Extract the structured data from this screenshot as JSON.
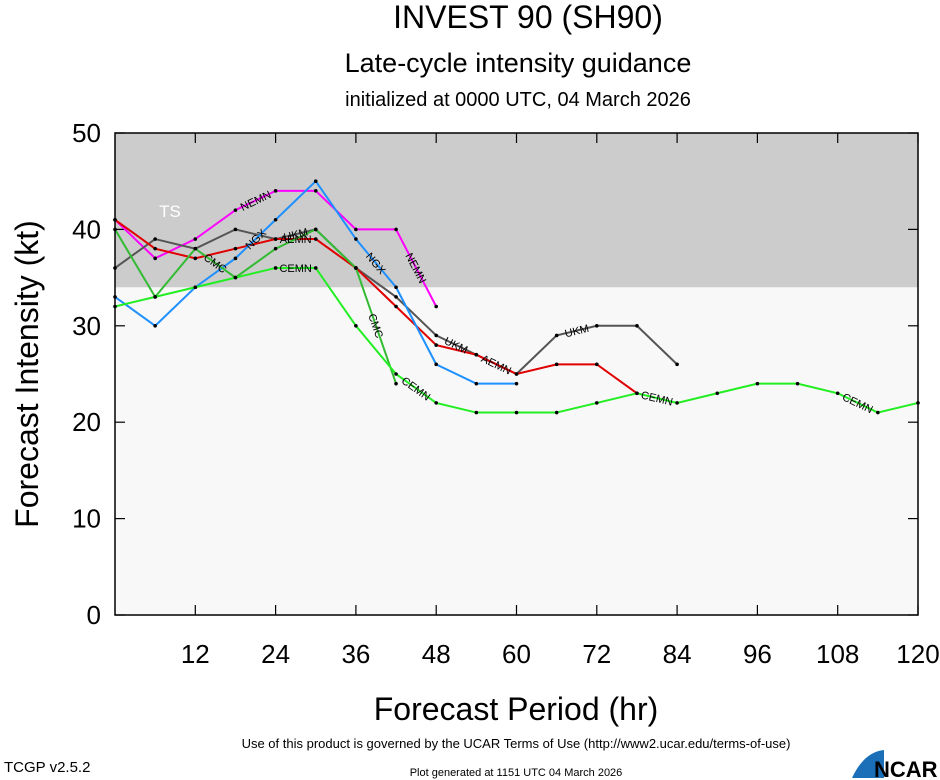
{
  "chart_data": {
    "type": "line",
    "title": "INVEST 90 (SH90)",
    "subtitle": "Late-cycle intensity guidance",
    "init_text": "initialized at 0000 UTC, 04 March 2026",
    "x_label": "Forecast Period (hr)",
    "y_label": "Forecast Intensity (kt)",
    "ts_threshold": 34,
    "ts_label": "TS",
    "x": [
      0,
      6,
      12,
      18,
      24,
      30,
      36,
      42,
      48,
      54,
      60,
      66,
      72,
      78,
      84,
      90,
      96,
      102,
      108,
      114,
      120
    ],
    "xlim": [
      0,
      120
    ],
    "xticks": [
      12,
      24,
      36,
      48,
      60,
      72,
      84,
      96,
      108,
      120
    ],
    "ylim": [
      0,
      50
    ],
    "yticks": [
      0,
      10,
      20,
      30,
      40,
      50
    ],
    "series": [
      {
        "name": "NEMN",
        "color": "#ff00ff",
        "values": [
          41,
          37,
          39,
          42,
          44,
          44,
          40,
          40,
          32,
          null,
          null,
          null,
          null,
          null,
          null,
          null,
          null,
          null,
          null,
          null,
          null
        ]
      },
      {
        "name": "UKM",
        "color": "#555555",
        "values": [
          36,
          39,
          38,
          40,
          39,
          40,
          36,
          33,
          29,
          27,
          25,
          29,
          30,
          30,
          26,
          null,
          null,
          null,
          null,
          null,
          null
        ]
      },
      {
        "name": "AEMN",
        "color": "#e00000",
        "values": [
          41,
          38,
          37,
          38,
          39,
          39,
          36,
          32,
          28,
          27,
          25,
          26,
          26,
          23,
          null,
          null,
          null,
          null,
          null,
          null,
          null
        ]
      },
      {
        "name": "NGX",
        "color": "#1e90ff",
        "values": [
          33,
          30,
          34,
          37,
          41,
          45,
          39,
          34,
          26,
          24,
          24,
          null,
          null,
          null,
          null,
          null,
          null,
          null,
          null,
          null,
          null
        ]
      },
      {
        "name": "CMC",
        "color": "#33bb33",
        "values": [
          40,
          33,
          38,
          35,
          38,
          40,
          36,
          24,
          null,
          null,
          null,
          null,
          null,
          null,
          null,
          null,
          null,
          null,
          null,
          null,
          null
        ]
      },
      {
        "name": "CEMN",
        "color": "#22ee22",
        "values": [
          32,
          33,
          34,
          35,
          36,
          36,
          30,
          25,
          22,
          21,
          21,
          21,
          22,
          23,
          22,
          23,
          24,
          24,
          23,
          21,
          22
        ]
      }
    ]
  },
  "footer": {
    "terms": "Use of this product is governed by the UCAR Terms of Use (http://www2.ucar.edu/terms-of-use)",
    "version": "TCGP v2.5.2",
    "generated": "Plot generated at 1151 UTC   04 March 2026",
    "logo_text": "NCAR"
  }
}
